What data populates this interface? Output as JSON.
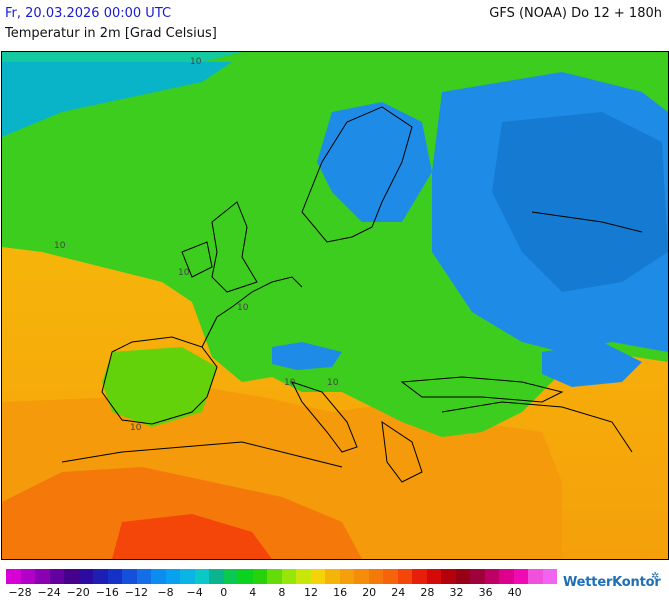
{
  "header": {
    "datetime": "Fr, 20.03.2026 00:00 UTC",
    "subtitle": "Temperatur in 2m [Grad Celsius]",
    "model": "GFS (NOAA) Do 12 + 180h"
  },
  "map": {
    "region": "Europe",
    "isotherm_labels": [
      "10",
      "10",
      "10",
      "10",
      "10",
      "10",
      "10"
    ]
  },
  "legend": {
    "ticks": [
      "−28",
      "−24",
      "−20",
      "−16",
      "−12",
      "−8",
      "−4",
      "0",
      "4",
      "8",
      "12",
      "16",
      "20",
      "24",
      "28",
      "32",
      "36",
      "40"
    ],
    "colors": [
      "#d700d7",
      "#b200c8",
      "#8c00b4",
      "#6400a0",
      "#46008c",
      "#2d0aa0",
      "#1e1eb4",
      "#1432c8",
      "#1450dc",
      "#146ee6",
      "#0a8cf0",
      "#0aa0f0",
      "#0ab4e6",
      "#0ac8c8",
      "#0ab48c",
      "#0ac850",
      "#0ad21e",
      "#28d20a",
      "#64dc0a",
      "#96e60a",
      "#c8e60a",
      "#f5d20a",
      "#f5b40a",
      "#f5a00a",
      "#f58c0a",
      "#f5780a",
      "#f5640a",
      "#f5460a",
      "#e61e0a",
      "#d20a0a",
      "#b4000a",
      "#960014",
      "#a0003c",
      "#be0064",
      "#dc008c",
      "#f00ab4",
      "#f050dc",
      "#f064f0"
    ],
    "brand": "WetterKontor"
  }
}
